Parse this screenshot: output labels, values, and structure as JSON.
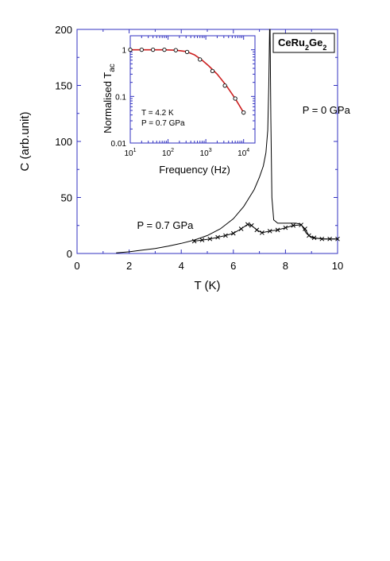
{
  "chart_data": [
    {
      "id": "main",
      "type": "line",
      "xlabel": "T (K)",
      "ylabel": "C (arb.unit)",
      "xlim": [
        0,
        10
      ],
      "ylim": [
        0,
        200
      ],
      "xticks": [
        0,
        2,
        4,
        6,
        8,
        10
      ],
      "yticks": [
        0,
        50,
        100,
        150,
        200
      ],
      "frame_color": "#3030c0",
      "series": [
        {
          "name": "P = 0 GPa",
          "style": "line",
          "color": "#000000",
          "x": [
            1.5,
            2,
            2.5,
            3,
            3.5,
            4,
            4.5,
            5,
            5.5,
            6,
            6.4,
            6.8,
            7.0,
            7.15,
            7.25,
            7.32,
            7.36,
            7.39,
            7.41,
            7.44,
            7.48,
            7.55,
            7.7,
            8.0,
            8.4,
            8.6,
            8.8,
            9.0,
            9.5,
            10
          ],
          "y": [
            0.5,
            1.5,
            3,
            4.5,
            6.5,
            9,
            12,
            16,
            22,
            31,
            42,
            57,
            68,
            78,
            90,
            110,
            150,
            200,
            200,
            120,
            50,
            30,
            27,
            27,
            27,
            26,
            18,
            14,
            13,
            13
          ]
        },
        {
          "name": "P = 0.7 GPa",
          "style": "line-markers",
          "color": "#000000",
          "x": [
            4.5,
            4.8,
            5.1,
            5.4,
            5.7,
            6.0,
            6.3,
            6.55,
            6.7,
            6.9,
            7.1,
            7.4,
            7.7,
            8.0,
            8.3,
            8.6,
            8.75,
            8.9,
            9.1,
            9.4,
            9.7,
            10
          ],
          "y": [
            11,
            12,
            13,
            14.5,
            16,
            18,
            22,
            26,
            25,
            21,
            18.5,
            20,
            21,
            23,
            25,
            25.5,
            22,
            16,
            14,
            13,
            13,
            13
          ]
        }
      ],
      "annotations": [
        {
          "text": "P = 0 GPa",
          "x": 8.65,
          "y": 125
        },
        {
          "text": "P = 0.7 GPa",
          "x": 2.3,
          "y": 22
        }
      ],
      "label_box": {
        "base": "CeRu",
        "sub1": "2",
        "mid": "Ge",
        "sub2": "2"
      }
    },
    {
      "id": "inset",
      "type": "line",
      "scale": "log-log",
      "xlabel": "Frequency (Hz)",
      "ylabel": "Normalised T",
      "ylabel_sub": "ac",
      "xlim": [
        10,
        20000
      ],
      "ylim": [
        0.01,
        2
      ],
      "xticks": [
        {
          "v": 10,
          "base": "10",
          "exp": "1"
        },
        {
          "v": 100,
          "base": "10",
          "exp": "2"
        },
        {
          "v": 1000,
          "base": "10",
          "exp": "3"
        },
        {
          "v": 10000,
          "base": "10",
          "exp": "4"
        }
      ],
      "yticks": [
        {
          "v": 0.01,
          "label": "0.01"
        },
        {
          "v": 0.1,
          "label": "0.1"
        },
        {
          "v": 1,
          "label": "1"
        }
      ],
      "frame_color": "#3030c0",
      "series": [
        {
          "style": "markers",
          "color": "#000000",
          "x": [
            10,
            20,
            40,
            80,
            160,
            320,
            700,
            1500,
            3200,
            6000,
            10000
          ],
          "y": [
            1,
            1,
            1,
            1,
            0.98,
            0.9,
            0.62,
            0.35,
            0.17,
            0.09,
            0.045
          ]
        },
        {
          "style": "line",
          "color": "#cc2020",
          "x": [
            10,
            30,
            80,
            160,
            300,
            500,
            800,
            1200,
            2000,
            3500,
            6000,
            10000
          ],
          "y": [
            1,
            1,
            1,
            0.98,
            0.92,
            0.78,
            0.6,
            0.45,
            0.3,
            0.17,
            0.09,
            0.045
          ]
        }
      ],
      "annotations": [
        {
          "text": "T = 4.2 K"
        },
        {
          "text": "P = 0.7 GPa"
        }
      ]
    }
  ]
}
